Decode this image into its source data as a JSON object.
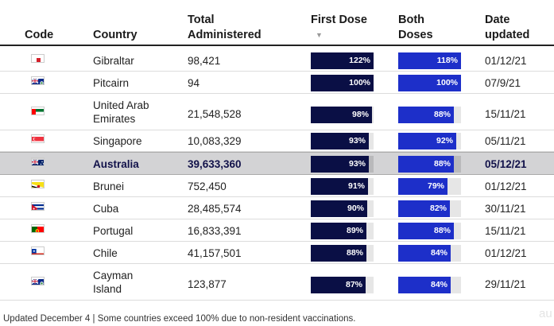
{
  "header": {
    "code": "Code",
    "country": "Country",
    "total": [
      "Total",
      "Administered"
    ],
    "first": "First Dose",
    "sort_icon": "sort-descending-icon",
    "both": [
      "Both",
      "Doses"
    ],
    "date": [
      "Date",
      "updated"
    ]
  },
  "colors": {
    "first_dose_bar": "#0a0f45",
    "both_doses_bar": "#1d2fc9",
    "bar_track": "#e6e6e6",
    "highlight_row": "#d3d3d5"
  },
  "rows": [
    {
      "flag": "gibraltar-flag-icon",
      "country": [
        "Gibraltar"
      ],
      "total": "98,421",
      "first_pct": 122,
      "first_label": "122%",
      "both_pct": 118,
      "both_label": "118%",
      "date": "01/12/21"
    },
    {
      "flag": "pitcairn-flag-icon",
      "country": [
        "Pitcairn"
      ],
      "total": "94",
      "first_pct": 100,
      "first_label": "100%",
      "both_pct": 100,
      "both_label": "100%",
      "date": "07/9/21"
    },
    {
      "flag": "uae-flag-icon",
      "country": [
        "United Arab",
        "Emirates"
      ],
      "total": "21,548,528",
      "first_pct": 98,
      "first_label": "98%",
      "both_pct": 88,
      "both_label": "88%",
      "date": "15/11/21"
    },
    {
      "flag": "singapore-flag-icon",
      "country": [
        "Singapore"
      ],
      "total": "10,083,329",
      "first_pct": 93,
      "first_label": "93%",
      "both_pct": 92,
      "both_label": "92%",
      "date": "05/11/21"
    },
    {
      "flag": "australia-flag-icon",
      "country": [
        "Australia"
      ],
      "total": "39,633,360",
      "first_pct": 93,
      "first_label": "93%",
      "both_pct": 88,
      "both_label": "88%",
      "date": "05/12/21",
      "highlight": true
    },
    {
      "flag": "brunei-flag-icon",
      "country": [
        "Brunei"
      ],
      "total": "752,450",
      "first_pct": 91,
      "first_label": "91%",
      "both_pct": 79,
      "both_label": "79%",
      "date": "01/12/21"
    },
    {
      "flag": "cuba-flag-icon",
      "country": [
        "Cuba"
      ],
      "total": "28,485,574",
      "first_pct": 90,
      "first_label": "90%",
      "both_pct": 82,
      "both_label": "82%",
      "date": "30/11/21"
    },
    {
      "flag": "portugal-flag-icon",
      "country": [
        "Portugal"
      ],
      "total": "16,833,391",
      "first_pct": 89,
      "first_label": "89%",
      "both_pct": 88,
      "both_label": "88%",
      "date": "15/11/21"
    },
    {
      "flag": "chile-flag-icon",
      "country": [
        "Chile"
      ],
      "total": "41,157,501",
      "first_pct": 88,
      "first_label": "88%",
      "both_pct": 84,
      "both_label": "84%",
      "date": "01/12/21"
    },
    {
      "flag": "cayman-flag-icon",
      "country": [
        "Cayman",
        "Island"
      ],
      "total": "123,877",
      "first_pct": 87,
      "first_label": "87%",
      "both_pct": 84,
      "both_label": "84%",
      "date": "29/11/21"
    }
  ],
  "footer": "Updated December 4 | Some countries exceed 100% due to non-resident vaccinations.",
  "watermark": "au"
}
